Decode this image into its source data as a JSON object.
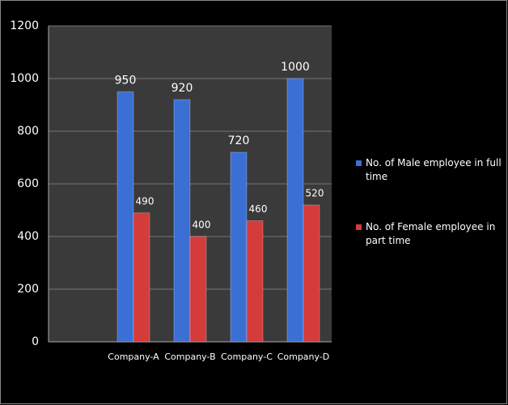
{
  "chart_data": {
    "type": "bar",
    "categories": [
      null,
      "Company-A",
      "Company-B",
      "Company-C",
      "Company-D"
    ],
    "series": [
      {
        "name": "No. of Male employee in full time",
        "color": "#3b6fd4",
        "values": [
          null,
          950,
          920,
          720,
          1000
        ]
      },
      {
        "name": "No. of Female employee in part time",
        "color": "#d43b3b",
        "values": [
          null,
          490,
          400,
          460,
          520
        ]
      }
    ],
    "ylim": [
      0,
      1200
    ],
    "yticks": [
      0,
      200,
      400,
      600,
      800,
      1000,
      1200
    ],
    "grid": true,
    "legend": "right"
  }
}
